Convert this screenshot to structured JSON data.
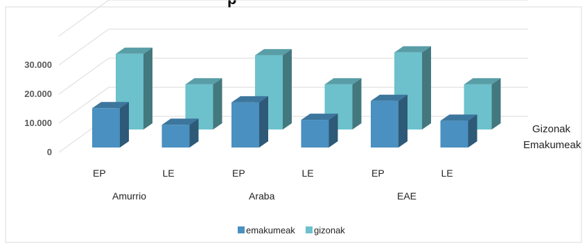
{
  "chart_data": {
    "type": "bar",
    "title_fragment": "p",
    "group_labels": [
      "Amurrio",
      "Araba",
      "EAE"
    ],
    "categories": [
      "EP",
      "LE",
      "EP",
      "LE",
      "EP",
      "LE"
    ],
    "y_ticks": [
      "0",
      "10.000",
      "20.000",
      "30.000"
    ],
    "ylim": [
      0,
      30000
    ],
    "grid": true,
    "depth_row_labels": [
      "Gizonak",
      "Emakumeak"
    ],
    "series": [
      {
        "name": "emakumeak",
        "color": "#4a90c0",
        "values": [
          13500,
          7800,
          15500,
          9500,
          16000,
          9200
        ]
      },
      {
        "name": "gizonak",
        "color": "#6cc1cc",
        "values": [
          26000,
          15500,
          25500,
          15500,
          26500,
          15500
        ]
      }
    ],
    "legend_position": "bottom"
  }
}
